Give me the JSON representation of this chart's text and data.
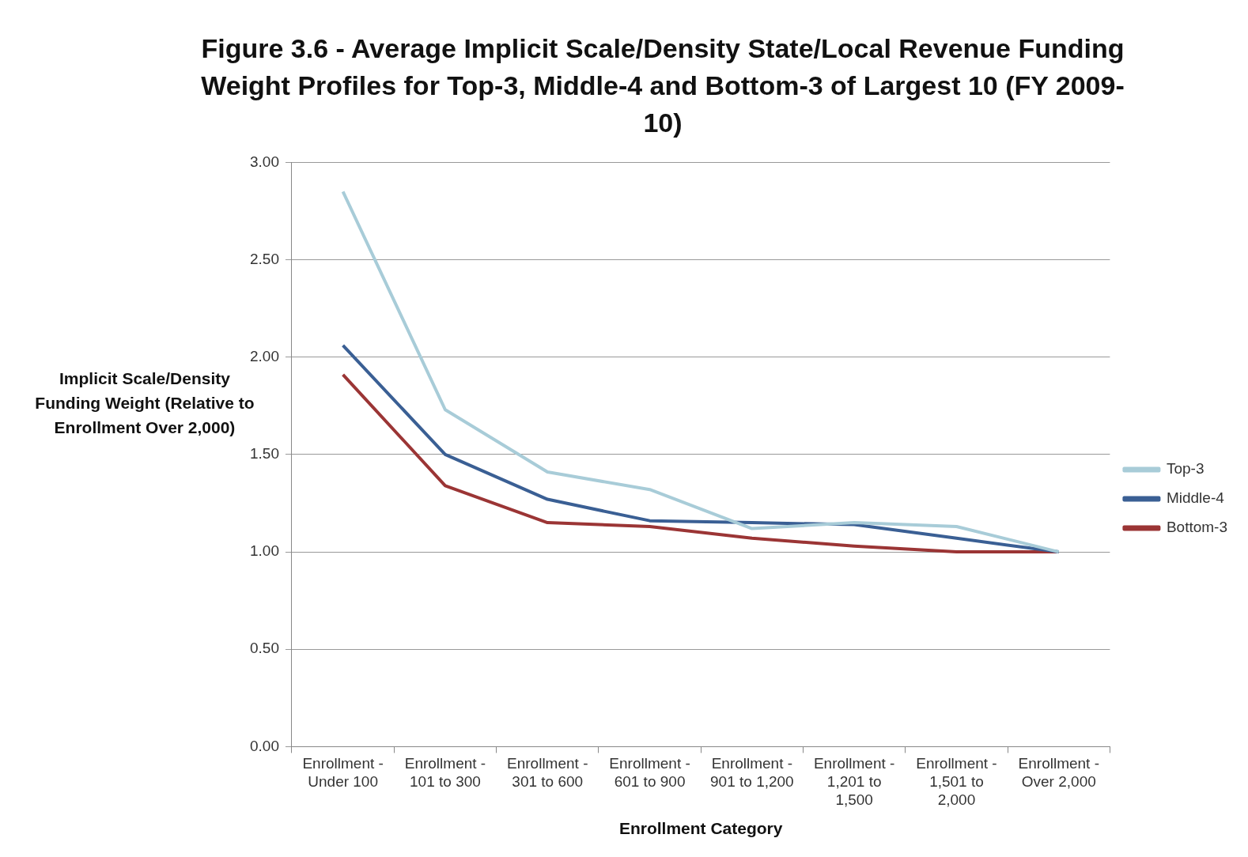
{
  "chart_data": {
    "type": "line",
    "title": "Figure 3.6 - Average Implicit Scale/Density State/Local Revenue Funding Weight Profiles for Top-3, Middle-4 and Bottom-3 of Largest 10 (FY 2009-10)",
    "xlabel": "Enrollment Category",
    "ylabel": "Implicit Scale/Density Funding Weight (Relative to Enrollment Over 2,000)",
    "categories": [
      "Enrollment - Under 100",
      "Enrollment - 101 to 300",
      "Enrollment - 301 to 600",
      "Enrollment - 601 to 900",
      "Enrollment - 901 to 1,200",
      "Enrollment - 1,201 to 1,500",
      "Enrollment - 1,501 to 2,000",
      "Enrollment - Over 2,000"
    ],
    "series": [
      {
        "name": "Top-3",
        "color": "#a8ccd8",
        "values": [
          2.85,
          1.73,
          1.41,
          1.32,
          1.12,
          1.15,
          1.13,
          1.0
        ]
      },
      {
        "name": "Middle-4",
        "color": "#3a5f94",
        "values": [
          2.06,
          1.5,
          1.27,
          1.16,
          1.15,
          1.14,
          1.07,
          1.0
        ]
      },
      {
        "name": "Bottom-3",
        "color": "#9b3535",
        "values": [
          1.91,
          1.34,
          1.15,
          1.13,
          1.07,
          1.03,
          1.0,
          1.0
        ]
      }
    ],
    "ylim": [
      0,
      3
    ],
    "yticks": [
      {
        "value": 0,
        "label": "0.00"
      },
      {
        "value": 0.5,
        "label": "0.50"
      },
      {
        "value": 1,
        "label": "1.00"
      },
      {
        "value": 1.5,
        "label": "1.50"
      },
      {
        "value": 2,
        "label": "2.00"
      },
      {
        "value": 2.5,
        "label": "2.50"
      },
      {
        "value": 3,
        "label": "3.00"
      }
    ],
    "grid": "y",
    "legend": "right",
    "marker": "none",
    "line_style": "solid"
  }
}
